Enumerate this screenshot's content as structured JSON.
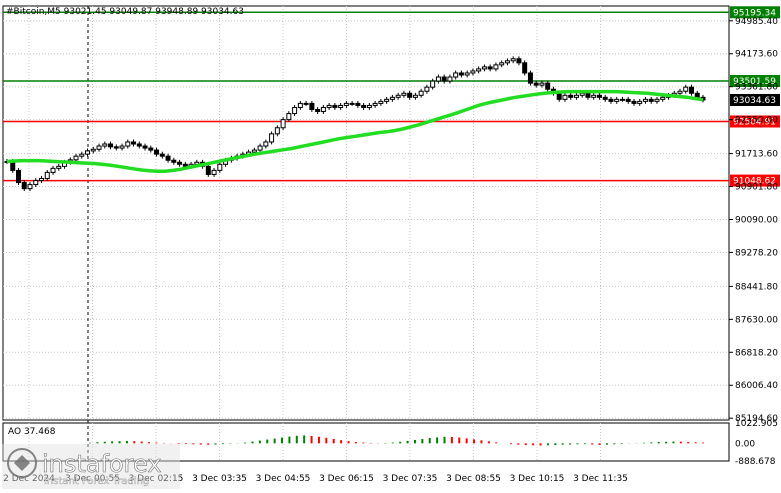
{
  "header": {
    "symbol_line": "#Bitcoin,M5  93021.45 93049.87 93948.89 93034.63"
  },
  "indicator": {
    "label": "AO 37.468"
  },
  "watermark": {
    "brand": "instaforex",
    "tagline": "Instant Forex Trading"
  },
  "colors": {
    "background": "#ffffff",
    "grid": "#c8c8c8",
    "candle": "#000000",
    "ma_line": "#22dd22",
    "support_line": "#ff0000",
    "resistance_line": "#008000",
    "ao_up": "#008000",
    "ao_down": "#ff0000"
  },
  "chart_data": {
    "type": "candlestick",
    "title": "#Bitcoin,M5  93021.45 93049.87 93948.89 93034.63",
    "price_axis_ticks": [
      "94985.40",
      "94173.60",
      "93361.80",
      "92550.00",
      "91713.60",
      "90901.80",
      "90090.00",
      "89278.20",
      "88441.80",
      "87630.00",
      "86818.20",
      "86006.40",
      "85194.60"
    ],
    "price_tick_values": [
      94985.4,
      94173.6,
      93361.8,
      92550.0,
      91713.6,
      90901.8,
      90090.0,
      89278.2,
      88441.8,
      87630.0,
      86818.2,
      86006.4,
      85194.6
    ],
    "ylim": [
      85150,
      95350
    ],
    "time_axis_labels": [
      "2 Dec 2024",
      "3 Dec 00:55",
      "3 Dec 02:15",
      "3 Dec 03:35",
      "3 Dec 04:55",
      "3 Dec 06:15",
      "3 Dec 07:35",
      "3 Dec 08:55",
      "3 Dec 10:15",
      "3 Dec 11:35"
    ],
    "horizontal_levels": [
      {
        "label": "95195.34",
        "value": 95195.34,
        "color": "#008000"
      },
      {
        "label": "93501.59",
        "value": 93501.59,
        "color": "#008000"
      },
      {
        "label": "92504.91",
        "value": 92504.91,
        "color": "#ff0000"
      },
      {
        "label": "91048.62",
        "value": 91048.62,
        "color": "#ff0000"
      }
    ],
    "current_price_label": "93034.63",
    "current_price": 93034.63,
    "close_prices": [
      91520,
      91300,
      91000,
      90850,
      90950,
      91050,
      91100,
      91250,
      91350,
      91400,
      91500,
      91560,
      91650,
      91700,
      91780,
      91820,
      91900,
      91950,
      91880,
      91850,
      91900,
      92000,
      91950,
      91900,
      91850,
      91800,
      91700,
      91650,
      91550,
      91500,
      91450,
      91400,
      91450,
      91500,
      91400,
      91200,
      91300,
      91450,
      91550,
      91600,
      91650,
      91700,
      91750,
      91800,
      91900,
      92000,
      92200,
      92350,
      92550,
      92700,
      92850,
      92950,
      92950,
      92800,
      92750,
      92850,
      92900,
      92850,
      92900,
      92950,
      92950,
      92900,
      92850,
      92900,
      92950,
      93000,
      93050,
      93100,
      93150,
      93200,
      93100,
      93150,
      93250,
      93350,
      93500,
      93600,
      93500,
      93600,
      93700,
      93650,
      93700,
      93750,
      93800,
      93850,
      93800,
      93900,
      93950,
      94000,
      94050,
      93950,
      93700,
      93450,
      93400,
      93450,
      93300,
      93200,
      93050,
      93150,
      93100,
      93150,
      93200,
      93100,
      93150,
      93100,
      93050,
      93000,
      93050,
      93050,
      93000,
      92950,
      93000,
      93050,
      93000,
      93050,
      93100,
      93150,
      93200,
      93250,
      93350,
      93200,
      93100,
      93034.63
    ],
    "ma_values": [
      91520,
      91530,
      91540,
      91540,
      91540,
      91530,
      91520,
      91510,
      91500,
      91490,
      91480,
      91470,
      91450,
      91430,
      91400,
      91370,
      91340,
      91310,
      91290,
      91280,
      91280,
      91300,
      91330,
      91370,
      91410,
      91450,
      91490,
      91530,
      91570,
      91610,
      91650,
      91690,
      91720,
      91750,
      91780,
      91810,
      91840,
      91880,
      91920,
      91960,
      92000,
      92040,
      92080,
      92110,
      92140,
      92170,
      92200,
      92230,
      92250,
      92280,
      92320,
      92370,
      92420,
      92480,
      92540,
      92600,
      92660,
      92720,
      92790,
      92860,
      92920,
      92970,
      93010,
      93050,
      93090,
      93120,
      93150,
      93180,
      93200,
      93220,
      93230,
      93240,
      93240,
      93240,
      93240,
      93240,
      93240,
      93240,
      93230,
      93220,
      93210,
      93200,
      93180,
      93160,
      93140,
      93120,
      93100,
      93070,
      93040
    ],
    "ao_values": [
      30,
      60,
      80,
      100,
      110,
      120,
      110,
      90,
      60,
      40,
      20,
      -10,
      -30,
      -40,
      -50,
      -60,
      -70,
      -60,
      -40,
      -20,
      10,
      40,
      90,
      140,
      190,
      240,
      290,
      340,
      380,
      400,
      370,
      330,
      280,
      220,
      160,
      110,
      70,
      40,
      20,
      10,
      20,
      40,
      80,
      120,
      170,
      220,
      270,
      300,
      330,
      320,
      290,
      250,
      200,
      150,
      100,
      50,
      0,
      -40,
      -70,
      -90,
      -100,
      -110,
      -100,
      -90,
      -70,
      -60,
      -50,
      -40,
      -60,
      -80,
      -70,
      -50,
      -30,
      -10,
      10,
      30,
      50,
      70,
      80,
      90,
      85,
      70,
      50,
      37.468
    ],
    "ao_axis_ticks": [
      "1022.905",
      "0.00",
      "-888.678"
    ],
    "ao_tick_values": [
      1022.905,
      0,
      -888.678
    ],
    "ao_ylim": [
      -888.678,
      1022.905
    ],
    "grid": true,
    "legend": "none"
  }
}
